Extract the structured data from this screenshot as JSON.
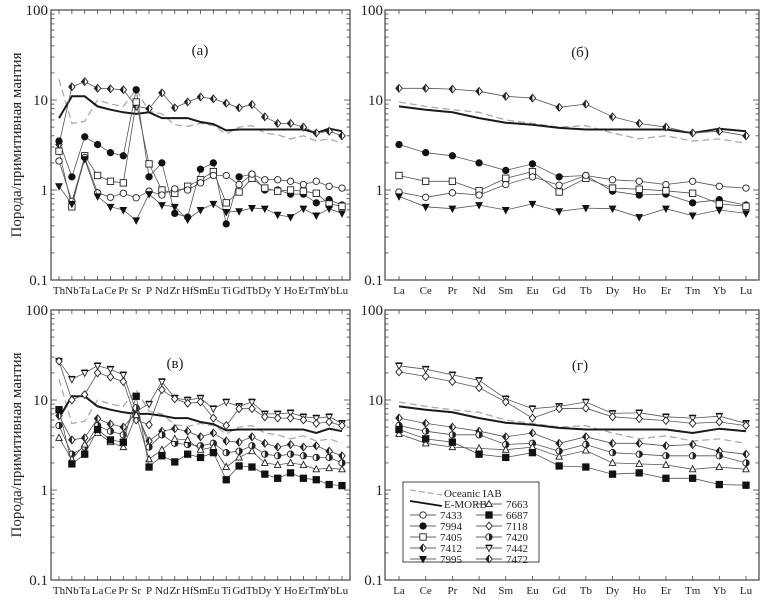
{
  "figure": {
    "ylabel": "Порода/примитивная мантия",
    "yticks": [
      "100",
      "10",
      "1",
      "0.1"
    ]
  },
  "legend": {
    "entries": [
      {
        "id": "iab",
        "label": "Oceanic IAB"
      },
      {
        "id": "emorb",
        "label": "E-MORB"
      },
      {
        "id": "7433",
        "label": "7433"
      },
      {
        "id": "7994",
        "label": "7994"
      },
      {
        "id": "7405",
        "label": "7405"
      },
      {
        "id": "7412",
        "label": "7412"
      },
      {
        "id": "7995",
        "label": "7995"
      },
      {
        "id": "7663",
        "label": "7663"
      },
      {
        "id": "6687",
        "label": "6687"
      },
      {
        "id": "7118",
        "label": "7118"
      },
      {
        "id": "7420",
        "label": "7420"
      },
      {
        "id": "7442",
        "label": "7442"
      },
      {
        "id": "7472",
        "label": "7472"
      }
    ]
  },
  "chart_data": [
    {
      "type": "line",
      "panel": "a",
      "title": "(а)",
      "xlabel": "",
      "ylabel": "Порода/примитивная мантия",
      "yscale": "log",
      "ylim": [
        0.1,
        100
      ],
      "categories": [
        "Th",
        "Nb",
        "Ta",
        "La",
        "Ce",
        "Pr",
        "Sr",
        "P",
        "Nd",
        "Zr",
        "Hf",
        "Sm",
        "Eu",
        "Ti",
        "Gd",
        "Tb",
        "Dy",
        "Y",
        "Ho",
        "Er",
        "Tm",
        "Yb",
        "Lu"
      ],
      "series": [
        {
          "name": "Oceanic IAB",
          "marker": "dashed",
          "values": [
            17,
            5.5,
            5.8,
            10,
            9,
            8.5,
            13,
            7.5,
            7,
            5.3,
            5.1,
            5.5,
            5.2,
            4.2,
            5,
            5.2,
            4.3,
            4.1,
            3.7,
            4,
            3.5,
            3.7,
            3.3
          ]
        },
        {
          "name": "E-MORB",
          "marker": "thick",
          "values": [
            6.3,
            11,
            11,
            8.5,
            7.8,
            7.3,
            7,
            7.3,
            6.3,
            6.3,
            6.3,
            5.7,
            5.4,
            4.6,
            4.7,
            4.7,
            4.7,
            4.7,
            4.7,
            4.7,
            4.3,
            4.8,
            4.5
          ]
        },
        {
          "name": "7412",
          "marker": "diamond-half",
          "values": [
            3.2,
            14,
            16,
            13.5,
            13.3,
            13,
            8.5,
            8,
            12,
            8.2,
            9.5,
            10.8,
            10.3,
            9.2,
            8.2,
            8.9,
            6.5,
            5.5,
            5.5,
            5,
            4.3,
            4.5,
            4
          ]
        },
        {
          "name": "7994",
          "marker": "filled-circle",
          "values": [
            3.5,
            1.4,
            3.9,
            3.2,
            2.6,
            2.4,
            13,
            1.4,
            2,
            0.55,
            0.5,
            1.7,
            2,
            0.42,
            1.4,
            1.5,
            1,
            1,
            0.9,
            0.9,
            0.72,
            0.78,
            0.68
          ]
        },
        {
          "name": "7405",
          "marker": "open-square",
          "values": [
            2.7,
            0.65,
            2.4,
            1.45,
            1.25,
            1.2,
            9.5,
            1.95,
            1,
            0.92,
            1.1,
            1.3,
            1.6,
            0.72,
            0.95,
            1.35,
            1.05,
            0.97,
            1,
            0.97,
            0.92,
            0.7,
            0.66
          ]
        },
        {
          "name": "7433",
          "marker": "open-circle",
          "values": [
            2.1,
            0.75,
            2.3,
            0.93,
            0.83,
            0.92,
            0.82,
            0.97,
            0.88,
            1.03,
            1,
            1.2,
            1.45,
            1.45,
            1.15,
            1.5,
            1.3,
            1.3,
            1.25,
            1.15,
            1.25,
            1.1,
            1.05
          ]
        },
        {
          "name": "7995",
          "marker": "filled-down-triangle",
          "values": [
            1.1,
            0.7,
            2.2,
            0.85,
            0.65,
            0.6,
            0.46,
            0.9,
            0.68,
            0.65,
            0.47,
            0.6,
            0.7,
            0.57,
            0.58,
            0.63,
            0.62,
            0.53,
            0.5,
            0.62,
            0.52,
            0.62,
            0.55
          ]
        }
      ]
    },
    {
      "type": "line",
      "panel": "b",
      "title": "(б)",
      "xlabel": "",
      "ylabel": "",
      "yscale": "log",
      "ylim": [
        0.1,
        100
      ],
      "categories": [
        "La",
        "Ce",
        "Pr",
        "Nd",
        "Sm",
        "Eu",
        "Gd",
        "Tb",
        "Dy",
        "Ho",
        "Er",
        "Tm",
        "Yb",
        "Lu"
      ],
      "series": [
        {
          "name": "Oceanic IAB",
          "marker": "dashed",
          "values": [
            9.5,
            8.5,
            7.8,
            7.3,
            6,
            5.5,
            5,
            5.2,
            4.3,
            3.7,
            4,
            3.5,
            3.7,
            3.3
          ]
        },
        {
          "name": "E-MORB",
          "marker": "thick",
          "values": [
            8.5,
            7.8,
            7.3,
            6.3,
            5.6,
            5.3,
            4.9,
            4.7,
            4.7,
            4.7,
            4.7,
            4.3,
            4.8,
            4.5
          ]
        },
        {
          "name": "7412",
          "marker": "diamond-half",
          "values": [
            13.5,
            13.5,
            13.2,
            12.5,
            11,
            10.5,
            8.3,
            9,
            6.5,
            5.5,
            5,
            4.3,
            4.5,
            4
          ]
        },
        {
          "name": "7994",
          "marker": "filled-circle",
          "values": [
            3.2,
            2.6,
            2.4,
            2,
            1.65,
            1.95,
            1.4,
            1.45,
            0.97,
            0.88,
            0.9,
            0.72,
            0.78,
            0.68
          ]
        },
        {
          "name": "7405",
          "marker": "open-square",
          "values": [
            1.45,
            1.25,
            1.25,
            0.98,
            1.35,
            1.6,
            0.95,
            1.35,
            1.05,
            1.02,
            0.98,
            0.92,
            0.7,
            0.66
          ]
        },
        {
          "name": "7433",
          "marker": "open-circle",
          "values": [
            0.95,
            0.83,
            0.93,
            0.88,
            1.15,
            1.4,
            1.13,
            1.45,
            1.3,
            1.25,
            1.15,
            1.25,
            1.1,
            1.05
          ]
        },
        {
          "name": "7995",
          "marker": "filled-down-triangle",
          "values": [
            0.85,
            0.65,
            0.62,
            0.68,
            0.6,
            0.7,
            0.58,
            0.63,
            0.62,
            0.5,
            0.62,
            0.52,
            0.6,
            0.55
          ]
        }
      ]
    },
    {
      "type": "line",
      "panel": "c",
      "title": "(в)",
      "xlabel": "",
      "ylabel": "Порода/примитивная мантия",
      "yscale": "log",
      "ylim": [
        0.1,
        100
      ],
      "categories": [
        "Th",
        "Nb",
        "Ta",
        "La",
        "Ce",
        "Pr",
        "Sr",
        "P",
        "Nd",
        "Zr",
        "Hf",
        "Sm",
        "Eu",
        "Ti",
        "Gd",
        "Tb",
        "Dy",
        "Y",
        "Ho",
        "Er",
        "Tm",
        "Yb",
        "Lu"
      ],
      "series": [
        {
          "name": "Oceanic IAB",
          "marker": "dashed",
          "values": [
            17,
            5.5,
            5.8,
            10,
            9,
            8.5,
            13,
            7.5,
            7,
            5.3,
            5.1,
            5.5,
            5.2,
            4.2,
            5,
            5.2,
            4.3,
            4.1,
            3.7,
            4,
            3.5,
            3.7,
            3.3
          ]
        },
        {
          "name": "E-MORB",
          "marker": "thick",
          "values": [
            6.3,
            11,
            11,
            8.5,
            7.8,
            7.3,
            7,
            7,
            6.7,
            6.3,
            6.3,
            5.7,
            5.4,
            4.6,
            4.7,
            4.7,
            4.7,
            4.7,
            4.7,
            4.7,
            4.3,
            4.8,
            4.5
          ]
        },
        {
          "name": "7442",
          "marker": "open-down-triangle",
          "values": [
            27,
            17,
            20,
            24,
            22,
            19,
            7.5,
            9,
            16,
            10.5,
            10,
            10.5,
            8,
            9.5,
            8.5,
            9.5,
            7,
            7,
            7.2,
            6.5,
            6.3,
            6.5,
            5.5
          ]
        },
        {
          "name": "7118",
          "marker": "open-diamond",
          "values": [
            27,
            10,
            11.5,
            20,
            18,
            16,
            6,
            5.3,
            13,
            10.3,
            9.2,
            9.5,
            6.3,
            5.2,
            8,
            8,
            6.5,
            6.3,
            6.3,
            6,
            5.5,
            5.7,
            5.2
          ]
        },
        {
          "name": "7472",
          "marker": "diamond-half",
          "values": [
            6.7,
            3.6,
            3.8,
            6.2,
            5.4,
            5,
            7.3,
            3.5,
            4.5,
            4.8,
            4.5,
            3.9,
            4.3,
            3.5,
            3.4,
            3.9,
            3.3,
            3,
            3.2,
            3,
            3.1,
            2.7,
            2.4
          ]
        },
        {
          "name": "7420",
          "marker": "half-circle",
          "values": [
            5.2,
            2.5,
            3,
            5.2,
            4.5,
            4.1,
            8.2,
            3,
            4.1,
            3.3,
            3.2,
            3.1,
            3.3,
            2.6,
            2.7,
            3.1,
            2.5,
            2.4,
            2.5,
            2.4,
            2.3,
            2.3,
            2
          ]
        },
        {
          "name": "7663",
          "marker": "open-triangle",
          "values": [
            3.8,
            2.2,
            3.2,
            4.3,
            3.4,
            3,
            6.8,
            2.2,
            2.8,
            3.7,
            3.6,
            2.8,
            3,
            1.8,
            2.3,
            2.7,
            2,
            1.9,
            2,
            1.9,
            1.7,
            1.75,
            1.7
          ]
        },
        {
          "name": "6687",
          "marker": "filled-square",
          "values": [
            7.8,
            1.95,
            2.5,
            4.7,
            3.6,
            3.4,
            11,
            1.8,
            2.4,
            2.05,
            2.5,
            2.3,
            2.6,
            1.3,
            1.85,
            1.8,
            1.5,
            1.35,
            1.55,
            1.35,
            1.3,
            1.15,
            1.12
          ]
        }
      ]
    },
    {
      "type": "line",
      "panel": "d",
      "title": "(г)",
      "xlabel": "",
      "ylabel": "",
      "yscale": "log",
      "ylim": [
        0.1,
        100
      ],
      "categories": [
        "La",
        "Ce",
        "Pr",
        "Nd",
        "Sm",
        "Eu",
        "Gd",
        "Tb",
        "Dy",
        "Ho",
        "Er",
        "Tm",
        "Yb",
        "Lu"
      ],
      "series": [
        {
          "name": "Oceanic IAB",
          "marker": "dashed",
          "values": [
            9.5,
            8.5,
            7.8,
            7.3,
            6,
            5.5,
            5,
            5.2,
            4.3,
            3.7,
            4,
            3.5,
            3.7,
            3.3
          ]
        },
        {
          "name": "E-MORB",
          "marker": "thick",
          "values": [
            8.5,
            7.8,
            7.3,
            6.3,
            5.6,
            5.3,
            4.9,
            4.7,
            4.7,
            4.7,
            4.7,
            4.3,
            4.8,
            4.5
          ]
        },
        {
          "name": "7442",
          "marker": "open-down-triangle",
          "values": [
            24,
            22,
            19,
            16.5,
            10.3,
            8,
            8.5,
            9.5,
            7.1,
            7.2,
            6.5,
            6.3,
            6.6,
            5.5
          ]
        },
        {
          "name": "7118",
          "marker": "open-diamond",
          "values": [
            20.5,
            18.3,
            16,
            13.7,
            9.5,
            6.3,
            8,
            8.1,
            6.5,
            6.2,
            5.9,
            5.5,
            5.7,
            5.2
          ]
        },
        {
          "name": "7472",
          "marker": "diamond-half",
          "values": [
            6.3,
            5.5,
            5,
            4.5,
            3.9,
            4.3,
            3.3,
            3.9,
            3.3,
            3.3,
            3.1,
            3.2,
            2.7,
            2.5
          ]
        },
        {
          "name": "7420",
          "marker": "half-circle",
          "values": [
            5.2,
            4.5,
            4.1,
            4.1,
            3.2,
            3.3,
            2.7,
            3.2,
            2.6,
            2.5,
            2.4,
            2.4,
            2.4,
            2
          ]
        },
        {
          "name": "7663",
          "marker": "open-triangle",
          "values": [
            4.2,
            3.3,
            3,
            2.9,
            2.8,
            3,
            2.35,
            2.75,
            2,
            1.95,
            1.9,
            1.7,
            1.8,
            1.7
          ]
        },
        {
          "name": "6687",
          "marker": "filled-square",
          "values": [
            4.7,
            3.7,
            3.4,
            2.5,
            2.3,
            2.6,
            1.85,
            1.8,
            1.5,
            1.55,
            1.35,
            1.35,
            1.15,
            1.13
          ]
        }
      ]
    }
  ]
}
